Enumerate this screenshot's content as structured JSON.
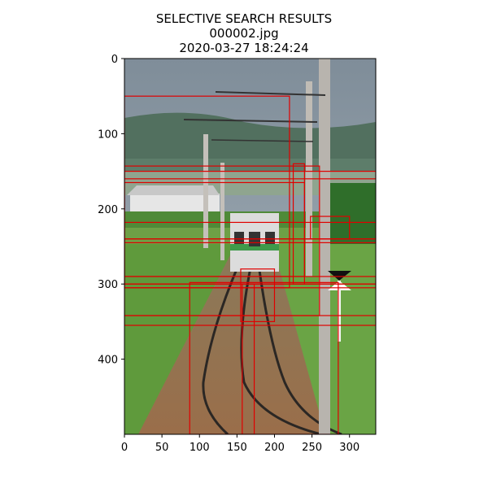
{
  "figure": {
    "title_line1": "SELECTIVE SEARCH RESULTS",
    "title_line2": "000002.jpg",
    "title_line3": "2020-03-27 18:24:24"
  },
  "image_description": "photo of a railway track with an approaching train",
  "axes": {
    "xlim": [
      0,
      335
    ],
    "ylim": [
      500,
      0
    ],
    "x_ticks": [
      0,
      50,
      100,
      150,
      200,
      250,
      300
    ],
    "y_ticks": [
      0,
      100,
      200,
      300,
      400
    ]
  },
  "box_color": "#e00000",
  "proposals": [
    {
      "x1": 0,
      "y1": 50,
      "x2": 220,
      "y2": 305
    },
    {
      "x1": 0,
      "y1": 143,
      "x2": 260,
      "y2": 342
    },
    {
      "x1": 0,
      "y1": 150,
      "x2": 335,
      "y2": 160
    },
    {
      "x1": 0,
      "y1": 165,
      "x2": 240,
      "y2": 290
    },
    {
      "x1": 0,
      "y1": 218,
      "x2": 335,
      "y2": 240
    },
    {
      "x1": 0,
      "y1": 240,
      "x2": 335,
      "y2": 245
    },
    {
      "x1": 0,
      "y1": 290,
      "x2": 335,
      "y2": 300
    },
    {
      "x1": 0,
      "y1": 300,
      "x2": 335,
      "y2": 305
    },
    {
      "x1": 0,
      "y1": 342,
      "x2": 335,
      "y2": 355
    },
    {
      "x1": 87,
      "y1": 298,
      "x2": 285,
      "y2": 500
    },
    {
      "x1": 157,
      "y1": 300,
      "x2": 173,
      "y2": 500
    },
    {
      "x1": 155,
      "y1": 280,
      "x2": 200,
      "y2": 350
    },
    {
      "x1": 225,
      "y1": 140,
      "x2": 240,
      "y2": 300
    },
    {
      "x1": 248,
      "y1": 210,
      "x2": 300,
      "y2": 240
    }
  ]
}
